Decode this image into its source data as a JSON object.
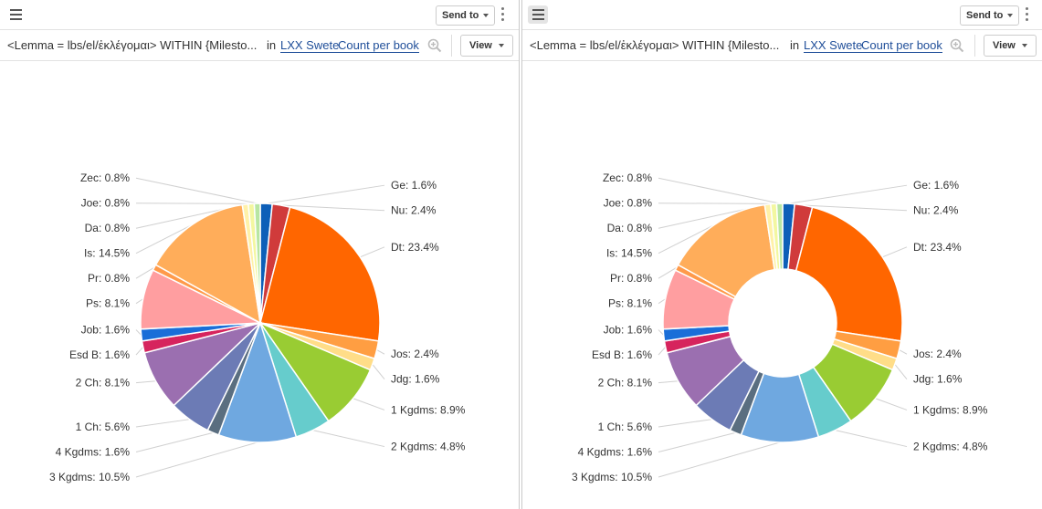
{
  "panes": [
    {
      "send_to_label": "Send to",
      "query_text": "<Lemma = lbs/el/ἐκλέγομαι> WITHIN {Milesto...",
      "in_label": "in",
      "corpus_link": "LXX Swete",
      "count_link": "Count per book",
      "view_label": "View",
      "chart_data": {
        "type": "pie",
        "donut": false,
        "categories": [
          "Ge",
          "Nu",
          "Dt",
          "Jos",
          "Jdg",
          "1 Kgdms",
          "2 Kgdms",
          "3 Kgdms",
          "4 Kgdms",
          "1 Ch",
          "2 Ch",
          "Esd B",
          "Job",
          "Ps",
          "Pr",
          "Is",
          "Da",
          "Joe",
          "Zec"
        ],
        "labels": [
          "Ge: 1.6%",
          "Nu: 2.4%",
          "Dt: 23.4%",
          "Jos: 2.4%",
          "Jdg: 1.6%",
          "1 Kgdms: 8.9%",
          "2 Kgdms: 4.8%",
          "3 Kgdms: 10.5%",
          "4 Kgdms: 1.6%",
          "1 Ch: 5.6%",
          "2 Ch: 8.1%",
          "Esd B: 1.6%",
          "Job: 1.6%",
          "Ps: 8.1%",
          "Pr: 0.8%",
          "Is: 14.5%",
          "Da: 0.8%",
          "Joe: 0.8%",
          "Zec: 0.8%"
        ],
        "values": [
          1.6,
          2.4,
          23.4,
          2.4,
          1.6,
          8.9,
          4.8,
          10.5,
          1.6,
          5.6,
          8.1,
          1.6,
          1.6,
          8.1,
          0.8,
          14.5,
          0.8,
          0.8,
          0.8
        ],
        "colors": [
          "#0d5fb8",
          "#d03b3b",
          "#ff6600",
          "#ff9e42",
          "#ffdd88",
          "#99cc33",
          "#66cccc",
          "#6fa8e0",
          "#5a6e80",
          "#6c7bb5",
          "#9b6fb0",
          "#d6245d",
          "#1a6ed8",
          "#ff9ea0",
          "#ff9a4a",
          "#ffad5a",
          "#fff1a8",
          "#f3f7a0",
          "#b8e6a2"
        ]
      }
    },
    {
      "send_to_label": "Send to",
      "query_text": "<Lemma = lbs/el/ἐκλέγομαι> WITHIN {Milesto...",
      "in_label": "in",
      "corpus_link": "LXX Swete",
      "count_link": "Count per book",
      "view_label": "View",
      "chart_data": {
        "type": "pie",
        "donut": true,
        "categories": [
          "Ge",
          "Nu",
          "Dt",
          "Jos",
          "Jdg",
          "1 Kgdms",
          "2 Kgdms",
          "3 Kgdms",
          "4 Kgdms",
          "1 Ch",
          "2 Ch",
          "Esd B",
          "Job",
          "Ps",
          "Pr",
          "Is",
          "Da",
          "Joe",
          "Zec"
        ],
        "labels": [
          "Ge: 1.6%",
          "Nu: 2.4%",
          "Dt: 23.4%",
          "Jos: 2.4%",
          "Jdg: 1.6%",
          "1 Kgdms: 8.9%",
          "2 Kgdms: 4.8%",
          "3 Kgdms: 10.5%",
          "4 Kgdms: 1.6%",
          "1 Ch: 5.6%",
          "2 Ch: 8.1%",
          "Esd B: 1.6%",
          "Job: 1.6%",
          "Ps: 8.1%",
          "Pr: 0.8%",
          "Is: 14.5%",
          "Da: 0.8%",
          "Joe: 0.8%",
          "Zec: 0.8%"
        ],
        "values": [
          1.6,
          2.4,
          23.4,
          2.4,
          1.6,
          8.9,
          4.8,
          10.5,
          1.6,
          5.6,
          8.1,
          1.6,
          1.6,
          8.1,
          0.8,
          14.5,
          0.8,
          0.8,
          0.8
        ],
        "colors": [
          "#0d5fb8",
          "#d03b3b",
          "#ff6600",
          "#ff9e42",
          "#ffdd88",
          "#99cc33",
          "#66cccc",
          "#6fa8e0",
          "#5a6e80",
          "#6c7bb5",
          "#9b6fb0",
          "#d6245d",
          "#1a6ed8",
          "#ff9ea0",
          "#ff9a4a",
          "#ffad5a",
          "#fff1a8",
          "#f3f7a0",
          "#b8e6a2"
        ]
      }
    }
  ]
}
